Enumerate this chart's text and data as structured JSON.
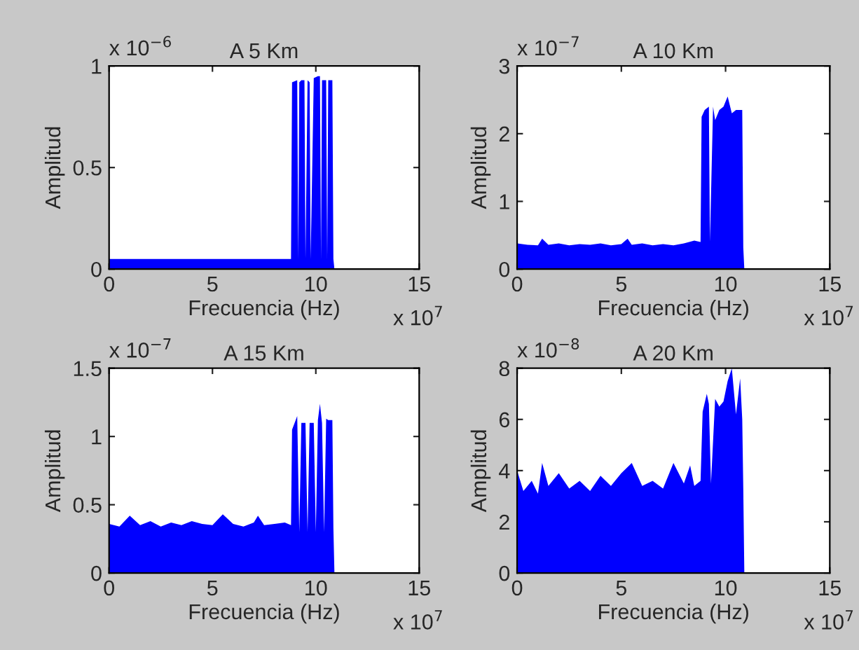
{
  "chart_data": [
    {
      "type": "area",
      "title": "A 5 Km",
      "xlabel": "Frecuencia (Hz)",
      "ylabel": "Amplitud",
      "annotations": [
        "x 10$^{−6}$",
        "x 10$^{7}$"
      ],
      "xlim": [
        0,
        15
      ],
      "ylim": [
        0,
        1
      ],
      "xticks": [
        0,
        5,
        10,
        15
      ],
      "yticks": [
        0,
        0.5,
        1
      ],
      "grid": false,
      "legend": false,
      "x": [
        0,
        0.5,
        1,
        1.5,
        2,
        2.5,
        3,
        3.5,
        4,
        4.5,
        5,
        5.5,
        6,
        6.5,
        7,
        7.5,
        8,
        8.5,
        8.8,
        8.85,
        9.1,
        9.15,
        9.2,
        9.3,
        9.45,
        9.5,
        9.6,
        9.7,
        9.75,
        9.9,
        10.1,
        10.2,
        10.25,
        10.3,
        10.5,
        10.55,
        10.6,
        10.8,
        10.85,
        10.9
      ],
      "series": [
        {
          "color": "#0000ff",
          "values": [
            0.05,
            0.05,
            0.05,
            0.05,
            0.05,
            0.05,
            0.05,
            0.05,
            0.05,
            0.05,
            0.05,
            0.05,
            0.05,
            0.05,
            0.05,
            0.05,
            0.05,
            0.05,
            0.05,
            0.92,
            0.93,
            0.05,
            0.92,
            0.93,
            0.93,
            0.05,
            0.93,
            0.92,
            0.05,
            0.94,
            0.95,
            0.95,
            0.05,
            0.93,
            0.93,
            0.05,
            0.93,
            0.93,
            0.05,
            0
          ]
        }
      ]
    },
    {
      "type": "area",
      "title": "A 10 Km",
      "xlabel": "Frecuencia (Hz)",
      "ylabel": "Amplitud",
      "annotations": [
        "x 10$^{−7}$",
        "x 10$^{7}$"
      ],
      "xlim": [
        0,
        15
      ],
      "ylim": [
        0,
        3
      ],
      "xticks": [
        0,
        5,
        10,
        15
      ],
      "yticks": [
        0,
        1,
        2,
        3
      ],
      "grid": false,
      "legend": false,
      "x": [
        0,
        0.5,
        1,
        1.2,
        1.5,
        2,
        2.5,
        3,
        3.5,
        4,
        4.5,
        5,
        5.3,
        5.5,
        6,
        6.5,
        7,
        7.5,
        8,
        8.5,
        8.8,
        8.85,
        9.0,
        9.2,
        9.25,
        9.4,
        9.5,
        9.7,
        9.9,
        10.1,
        10.3,
        10.5,
        10.7,
        10.8,
        10.85,
        10.9
      ],
      "series": [
        {
          "color": "#0000ff",
          "values": [
            0.38,
            0.36,
            0.35,
            0.45,
            0.36,
            0.38,
            0.35,
            0.37,
            0.36,
            0.38,
            0.35,
            0.37,
            0.45,
            0.36,
            0.38,
            0.35,
            0.37,
            0.35,
            0.38,
            0.42,
            0.4,
            2.25,
            2.35,
            2.4,
            0.4,
            2.4,
            2.2,
            2.35,
            2.4,
            2.55,
            2.3,
            2.35,
            2.35,
            2.35,
            0.32,
            0
          ]
        }
      ]
    },
    {
      "type": "area",
      "title": "A 15 Km",
      "xlabel": "Frecuencia (Hz)",
      "ylabel": "Amplitud",
      "annotations": [
        "x 10$^{−7}$",
        "x 10$^{7}$"
      ],
      "xlim": [
        0,
        15
      ],
      "ylim": [
        0,
        1.5
      ],
      "xticks": [
        0,
        5,
        10,
        15
      ],
      "yticks": [
        0,
        0.5,
        1,
        1.5
      ],
      "grid": false,
      "legend": false,
      "x": [
        0,
        0.5,
        1,
        1.5,
        2,
        2.5,
        3,
        3.5,
        4,
        4.5,
        5,
        5.5,
        6,
        6.5,
        7,
        7.2,
        7.5,
        8,
        8.5,
        8.8,
        8.85,
        9.1,
        9.2,
        9.3,
        9.5,
        9.6,
        9.7,
        9.9,
        10.0,
        10.1,
        10.2,
        10.3,
        10.4,
        10.5,
        10.6,
        10.8,
        10.85,
        10.9
      ],
      "series": [
        {
          "color": "#0000ff",
          "values": [
            0.36,
            0.34,
            0.42,
            0.35,
            0.38,
            0.34,
            0.37,
            0.35,
            0.38,
            0.36,
            0.35,
            0.43,
            0.36,
            0.34,
            0.37,
            0.42,
            0.35,
            0.36,
            0.37,
            0.35,
            1.05,
            1.15,
            0.3,
            1.1,
            1.1,
            0.3,
            1.1,
            1.1,
            0.3,
            1.12,
            1.24,
            1.1,
            0.3,
            1.13,
            1.12,
            1.12,
            0.33,
            0
          ]
        }
      ]
    },
    {
      "type": "area",
      "title": "A 20 Km",
      "xlabel": "Frecuencia (Hz)",
      "ylabel": "Amplitud",
      "annotations": [
        "x 10$^{−8}$",
        "x 10$^{7}$"
      ],
      "xlim": [
        0,
        15
      ],
      "ylim": [
        0,
        8
      ],
      "xticks": [
        0,
        5,
        10,
        15
      ],
      "yticks": [
        0,
        2,
        4,
        6,
        8
      ],
      "grid": false,
      "legend": false,
      "x": [
        0,
        0.3,
        0.7,
        1,
        1.2,
        1.5,
        2,
        2.5,
        3,
        3.5,
        4,
        4.5,
        5,
        5.5,
        6,
        6.5,
        7,
        7.5,
        8,
        8.3,
        8.5,
        8.8,
        8.9,
        9.1,
        9.2,
        9.3,
        9.5,
        9.7,
        9.9,
        10.1,
        10.3,
        10.5,
        10.7,
        10.8,
        10.85,
        10.9
      ],
      "series": [
        {
          "color": "#0000ff",
          "values": [
            4.0,
            3.2,
            3.6,
            3.1,
            4.3,
            3.4,
            3.9,
            3.3,
            3.6,
            3.2,
            3.8,
            3.4,
            3.9,
            4.3,
            3.4,
            3.6,
            3.3,
            4.3,
            3.5,
            4.2,
            3.4,
            3.6,
            6.3,
            7.0,
            6.6,
            3.5,
            6.8,
            6.5,
            6.7,
            7.5,
            8.0,
            6.2,
            7.6,
            6.0,
            3.3,
            0
          ]
        }
      ]
    }
  ]
}
